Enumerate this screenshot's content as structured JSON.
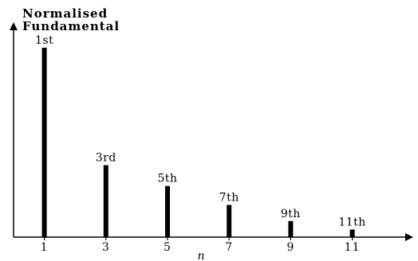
{
  "chart_data": {
    "type": "bar",
    "title_lines": [
      "Normalised",
      "Fundamental"
    ],
    "xlabel": "n",
    "ylabel": "",
    "categories": [
      "1",
      "3",
      "5",
      "7",
      "9",
      "11"
    ],
    "labels": [
      "1st",
      "3rd",
      "5th",
      "7th",
      "9th",
      "11th"
    ],
    "values": [
      1.0,
      0.38,
      0.27,
      0.17,
      0.085,
      0.04
    ],
    "ylim": [
      0,
      1.15
    ],
    "xlim": [
      0,
      12.4
    ],
    "grid": false,
    "legend": "none"
  }
}
